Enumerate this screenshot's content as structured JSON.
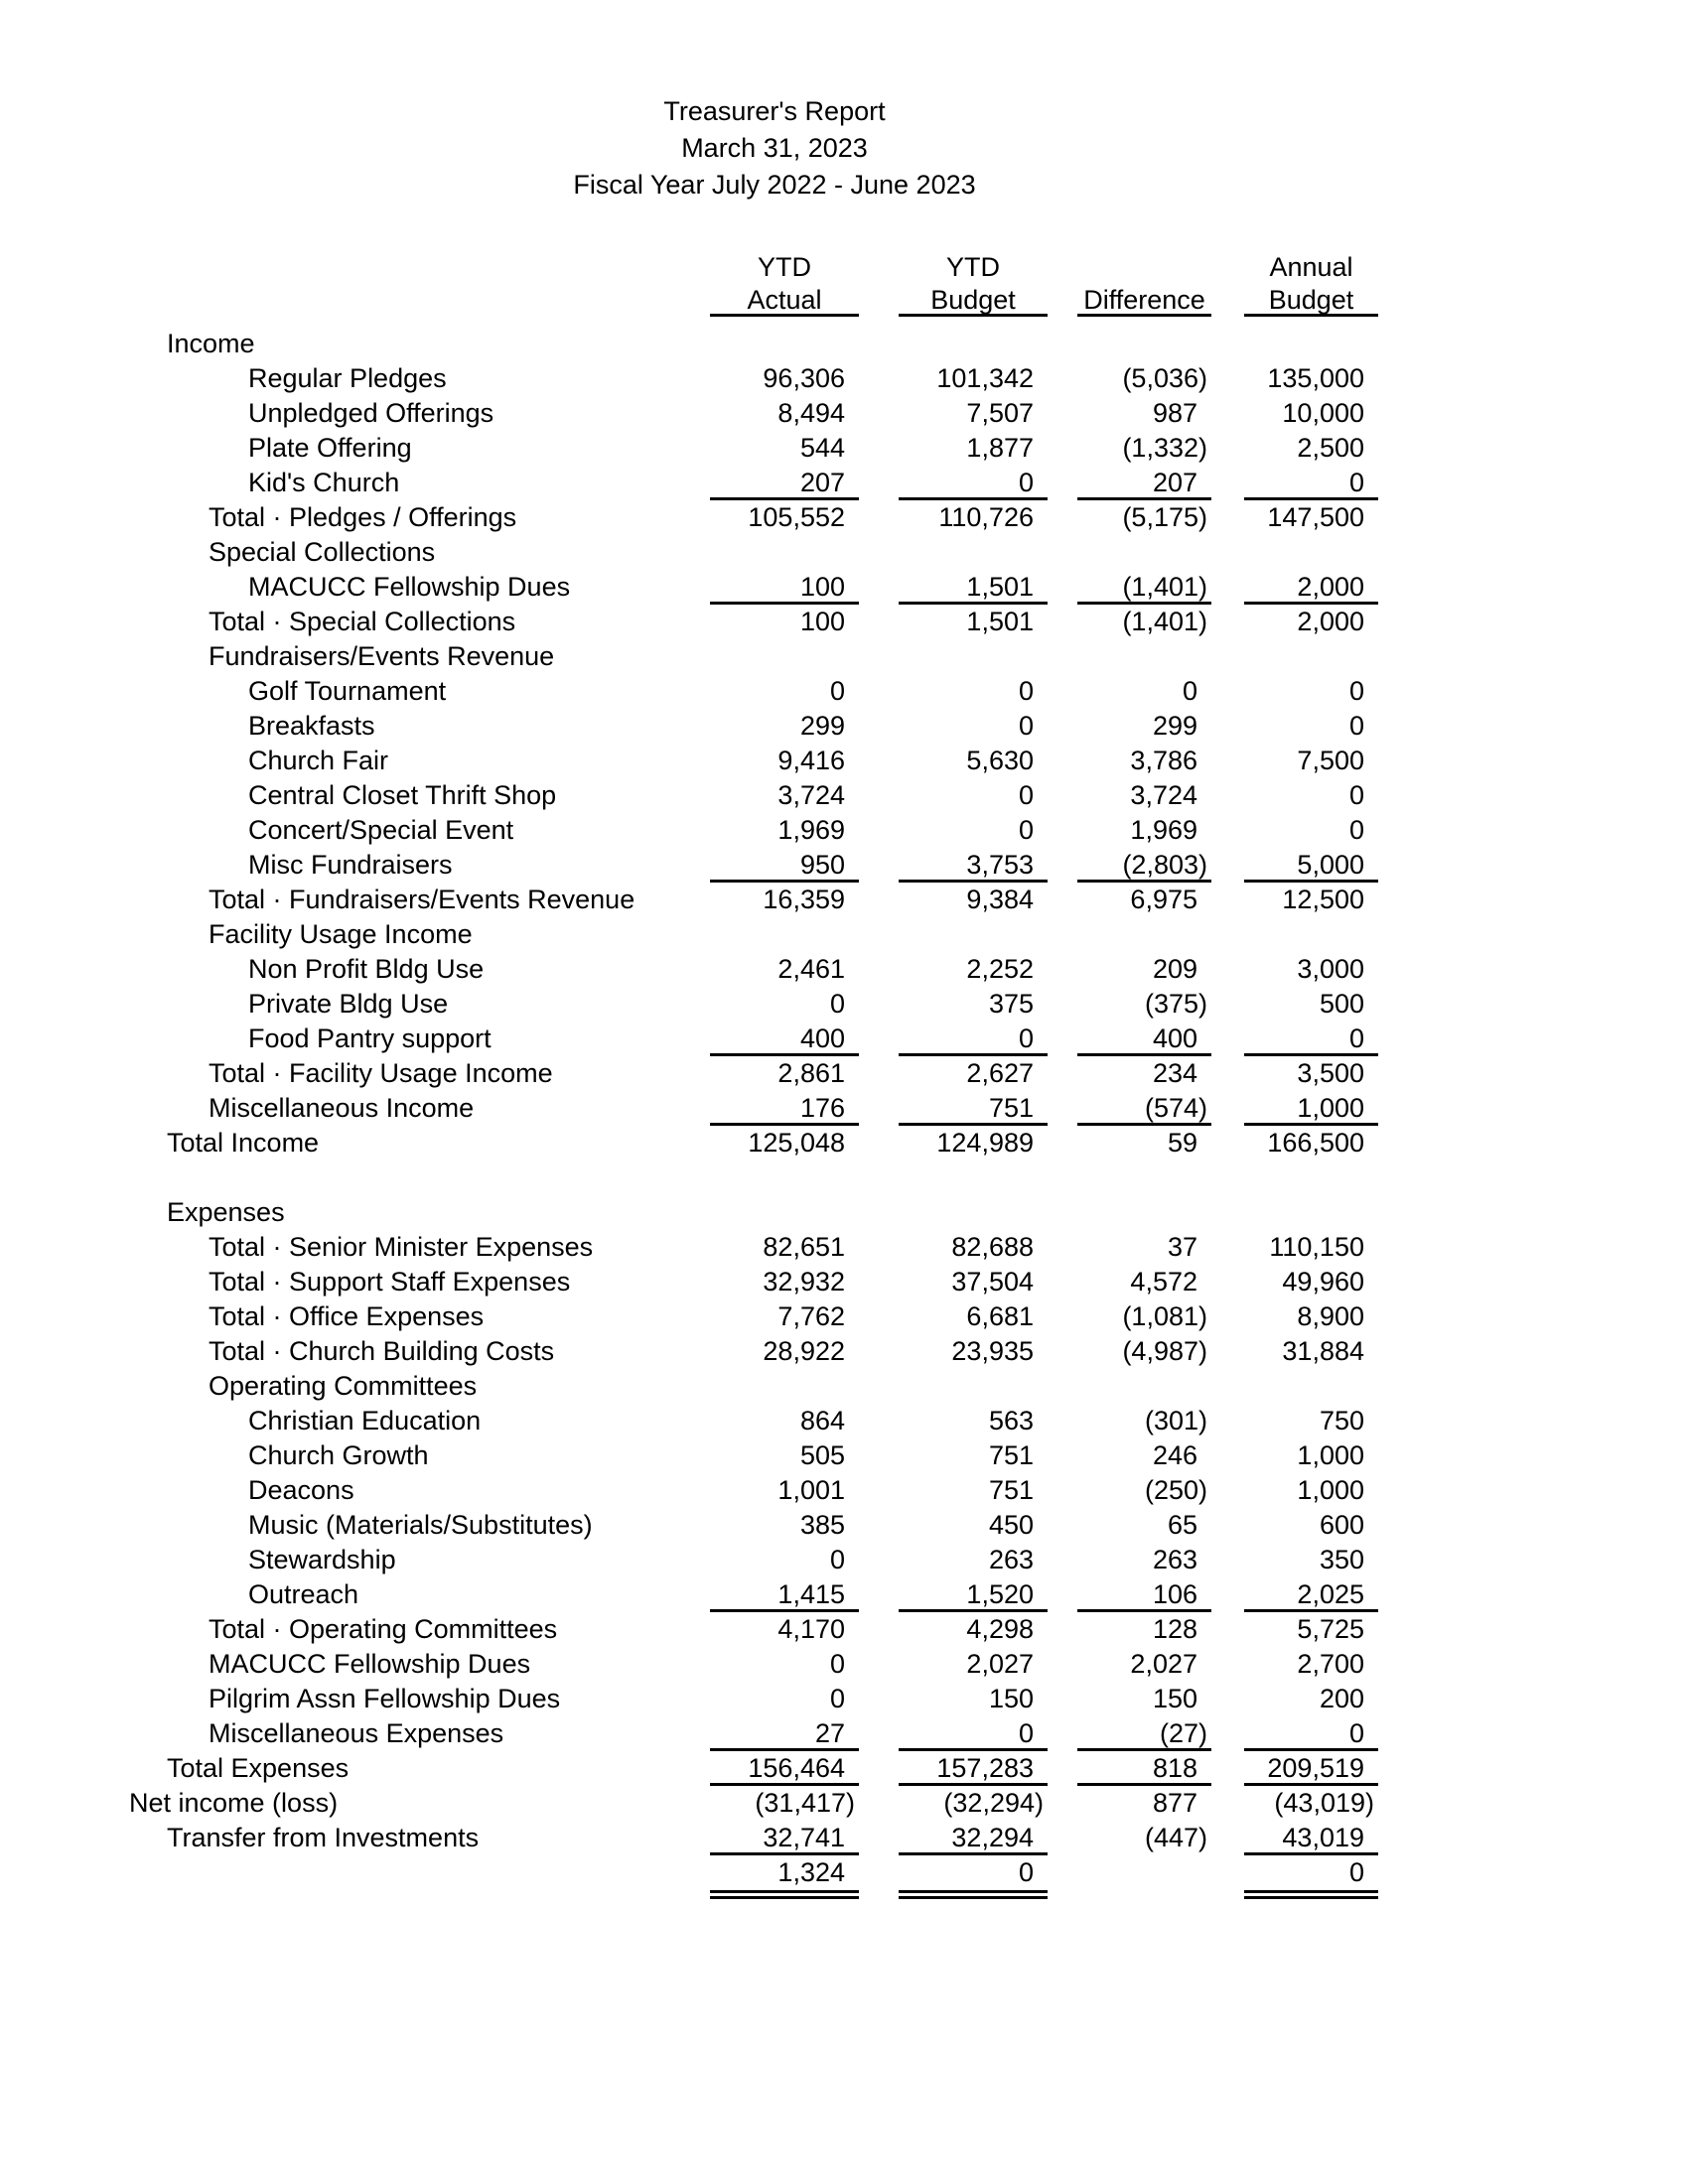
{
  "page": {
    "title": "Treasurer's Report",
    "date": "March 31, 2023",
    "fiscal_year": "Fiscal Year July 2022 - June 2023"
  },
  "colors": {
    "text": "#000000",
    "background": "#ffffff",
    "rule": "#000000"
  },
  "table": {
    "columns": [
      {
        "line1": "YTD",
        "line2": "Actual"
      },
      {
        "line1": "YTD",
        "line2": "Budget"
      },
      {
        "line1": "",
        "line2": "Difference"
      },
      {
        "line1": "Annual",
        "line2": "Budget"
      }
    ],
    "rows": [
      {
        "label": "Income",
        "indent": 1,
        "values": [
          "",
          "",
          "",
          ""
        ],
        "rule": [],
        "dbl": [],
        "gap": false
      },
      {
        "label": "Regular Pledges",
        "indent": 3,
        "values": [
          "96,306",
          "101,342",
          "(5,036)",
          "135,000"
        ],
        "rule": [],
        "dbl": [],
        "gap": false
      },
      {
        "label": "Unpledged Offerings",
        "indent": 3,
        "values": [
          "8,494",
          "7,507",
          "987",
          "10,000"
        ],
        "rule": [],
        "dbl": [],
        "gap": false
      },
      {
        "label": "Plate Offering",
        "indent": 3,
        "values": [
          "544",
          "1,877",
          "(1,332)",
          "2,500"
        ],
        "rule": [],
        "dbl": [],
        "gap": false
      },
      {
        "label": "Kid's Church",
        "indent": 3,
        "values": [
          "207",
          "0",
          "207",
          "0"
        ],
        "rule": [
          0,
          1,
          2,
          3
        ],
        "dbl": [],
        "gap": false
      },
      {
        "label": "Total · Pledges / Offerings",
        "indent": 2,
        "values": [
          "105,552",
          "110,726",
          "(5,175)",
          "147,500"
        ],
        "rule": [],
        "dbl": [],
        "gap": false
      },
      {
        "label": "Special Collections",
        "indent": 2,
        "values": [
          "",
          "",
          "",
          ""
        ],
        "rule": [],
        "dbl": [],
        "gap": false
      },
      {
        "label": "MACUCC Fellowship Dues",
        "indent": 3,
        "values": [
          "100",
          "1,501",
          "(1,401)",
          "2,000"
        ],
        "rule": [
          0,
          1,
          2,
          3
        ],
        "dbl": [],
        "gap": false
      },
      {
        "label": "Total · Special Collections",
        "indent": 2,
        "values": [
          "100",
          "1,501",
          "(1,401)",
          "2,000"
        ],
        "rule": [],
        "dbl": [],
        "gap": false
      },
      {
        "label": "Fundraisers/Events Revenue",
        "indent": 2,
        "values": [
          "",
          "",
          "",
          ""
        ],
        "rule": [],
        "dbl": [],
        "gap": false
      },
      {
        "label": "Golf Tournament",
        "indent": 3,
        "values": [
          "0",
          "0",
          "0",
          "0"
        ],
        "rule": [],
        "dbl": [],
        "gap": false
      },
      {
        "label": "Breakfasts",
        "indent": 3,
        "values": [
          "299",
          "0",
          "299",
          "0"
        ],
        "rule": [],
        "dbl": [],
        "gap": false
      },
      {
        "label": "Church Fair",
        "indent": 3,
        "values": [
          "9,416",
          "5,630",
          "3,786",
          "7,500"
        ],
        "rule": [],
        "dbl": [],
        "gap": false
      },
      {
        "label": "Central Closet Thrift Shop",
        "indent": 3,
        "values": [
          "3,724",
          "0",
          "3,724",
          "0"
        ],
        "rule": [],
        "dbl": [],
        "gap": false
      },
      {
        "label": "Concert/Special Event",
        "indent": 3,
        "values": [
          "1,969",
          "0",
          "1,969",
          "0"
        ],
        "rule": [],
        "dbl": [],
        "gap": false
      },
      {
        "label": "Misc Fundraisers",
        "indent": 3,
        "values": [
          "950",
          "3,753",
          "(2,803)",
          "5,000"
        ],
        "rule": [
          0,
          1,
          2,
          3
        ],
        "dbl": [],
        "gap": false
      },
      {
        "label": "Total · Fundraisers/Events Revenue",
        "indent": 2,
        "values": [
          "16,359",
          "9,384",
          "6,975",
          "12,500"
        ],
        "rule": [],
        "dbl": [],
        "gap": false
      },
      {
        "label": "Facility Usage Income",
        "indent": 2,
        "values": [
          "",
          "",
          "",
          ""
        ],
        "rule": [],
        "dbl": [],
        "gap": false
      },
      {
        "label": "Non Profit Bldg Use",
        "indent": 3,
        "values": [
          "2,461",
          "2,252",
          "209",
          "3,000"
        ],
        "rule": [],
        "dbl": [],
        "gap": false
      },
      {
        "label": "Private Bldg Use",
        "indent": 3,
        "values": [
          "0",
          "375",
          "(375)",
          "500"
        ],
        "rule": [],
        "dbl": [],
        "gap": false
      },
      {
        "label": "Food Pantry support",
        "indent": 3,
        "values": [
          "400",
          "0",
          "400",
          "0"
        ],
        "rule": [
          0,
          1,
          2,
          3
        ],
        "dbl": [],
        "gap": false
      },
      {
        "label": "Total · Facility Usage Income",
        "indent": 2,
        "values": [
          "2,861",
          "2,627",
          "234",
          "3,500"
        ],
        "rule": [],
        "dbl": [],
        "gap": false
      },
      {
        "label": "Miscellaneous Income",
        "indent": 2,
        "values": [
          "176",
          "751",
          "(574)",
          "1,000"
        ],
        "rule": [
          0,
          1,
          2,
          3
        ],
        "dbl": [],
        "gap": false
      },
      {
        "label": "Total Income",
        "indent": 1,
        "values": [
          "125,048",
          "124,989",
          "59",
          "166,500"
        ],
        "rule": [],
        "dbl": [],
        "gap": false
      },
      {
        "label": "Expenses",
        "indent": 1,
        "values": [
          "",
          "",
          "",
          ""
        ],
        "rule": [],
        "dbl": [],
        "gap": true
      },
      {
        "label": "Total · Senior Minister Expenses",
        "indent": 2,
        "values": [
          "82,651",
          "82,688",
          "37",
          "110,150"
        ],
        "rule": [],
        "dbl": [],
        "gap": false
      },
      {
        "label": "Total · Support Staff Expenses",
        "indent": 2,
        "values": [
          "32,932",
          "37,504",
          "4,572",
          "49,960"
        ],
        "rule": [],
        "dbl": [],
        "gap": false
      },
      {
        "label": "Total · Office Expenses",
        "indent": 2,
        "values": [
          "7,762",
          "6,681",
          "(1,081)",
          "8,900"
        ],
        "rule": [],
        "dbl": [],
        "gap": false
      },
      {
        "label": "Total · Church Building Costs",
        "indent": 2,
        "values": [
          "28,922",
          "23,935",
          "(4,987)",
          "31,884"
        ],
        "rule": [],
        "dbl": [],
        "gap": false
      },
      {
        "label": "Operating Committees",
        "indent": 2,
        "values": [
          "",
          "",
          "",
          ""
        ],
        "rule": [],
        "dbl": [],
        "gap": false
      },
      {
        "label": "Christian Education",
        "indent": 3,
        "values": [
          "864",
          "563",
          "(301)",
          "750"
        ],
        "rule": [],
        "dbl": [],
        "gap": false
      },
      {
        "label": "Church Growth",
        "indent": 3,
        "values": [
          "505",
          "751",
          "246",
          "1,000"
        ],
        "rule": [],
        "dbl": [],
        "gap": false
      },
      {
        "label": "Deacons",
        "indent": 3,
        "values": [
          "1,001",
          "751",
          "(250)",
          "1,000"
        ],
        "rule": [],
        "dbl": [],
        "gap": false
      },
      {
        "label": "Music (Materials/Substitutes)",
        "indent": 3,
        "values": [
          "385",
          "450",
          "65",
          "600"
        ],
        "rule": [],
        "dbl": [],
        "gap": false
      },
      {
        "label": "Stewardship",
        "indent": 3,
        "values": [
          "0",
          "263",
          "263",
          "350"
        ],
        "rule": [],
        "dbl": [],
        "gap": false
      },
      {
        "label": "Outreach",
        "indent": 3,
        "values": [
          "1,415",
          "1,520",
          "106",
          "2,025"
        ],
        "rule": [
          0,
          1,
          2,
          3
        ],
        "dbl": [],
        "gap": false
      },
      {
        "label": "Total · Operating Committees",
        "indent": 2,
        "values": [
          "4,170",
          "4,298",
          "128",
          "5,725"
        ],
        "rule": [],
        "dbl": [],
        "gap": false
      },
      {
        "label": "MACUCC Fellowship Dues",
        "indent": 2,
        "values": [
          "0",
          "2,027",
          "2,027",
          "2,700"
        ],
        "rule": [],
        "dbl": [],
        "gap": false
      },
      {
        "label": "Pilgrim Assn Fellowship Dues",
        "indent": 2,
        "values": [
          "0",
          "150",
          "150",
          "200"
        ],
        "rule": [],
        "dbl": [],
        "gap": false
      },
      {
        "label": "Miscellaneous Expenses",
        "indent": 2,
        "values": [
          "27",
          "0",
          "(27)",
          "0"
        ],
        "rule": [
          0,
          1,
          2,
          3
        ],
        "dbl": [],
        "gap": false
      },
      {
        "label": "Total Expenses",
        "indent": 1,
        "values": [
          "156,464",
          "157,283",
          "818",
          "209,519"
        ],
        "rule": [
          0,
          1,
          2,
          3
        ],
        "dbl": [],
        "gap": false
      },
      {
        "label": "Net income (loss)",
        "indent": 0,
        "values": [
          "(31,417)",
          "(32,294)",
          "877",
          "(43,019)"
        ],
        "rule": [],
        "dbl": [],
        "gap": false
      },
      {
        "label": "Transfer from Investments",
        "indent": 1,
        "values": [
          "32,741",
          "32,294",
          "(447)",
          "43,019"
        ],
        "rule": [
          0,
          1,
          3
        ],
        "dbl": [],
        "gap": false
      },
      {
        "label": "",
        "indent": 1,
        "values": [
          "1,324",
          "0",
          "",
          "0"
        ],
        "rule": [],
        "dbl": [
          0,
          1,
          3
        ],
        "gap": false
      }
    ]
  }
}
